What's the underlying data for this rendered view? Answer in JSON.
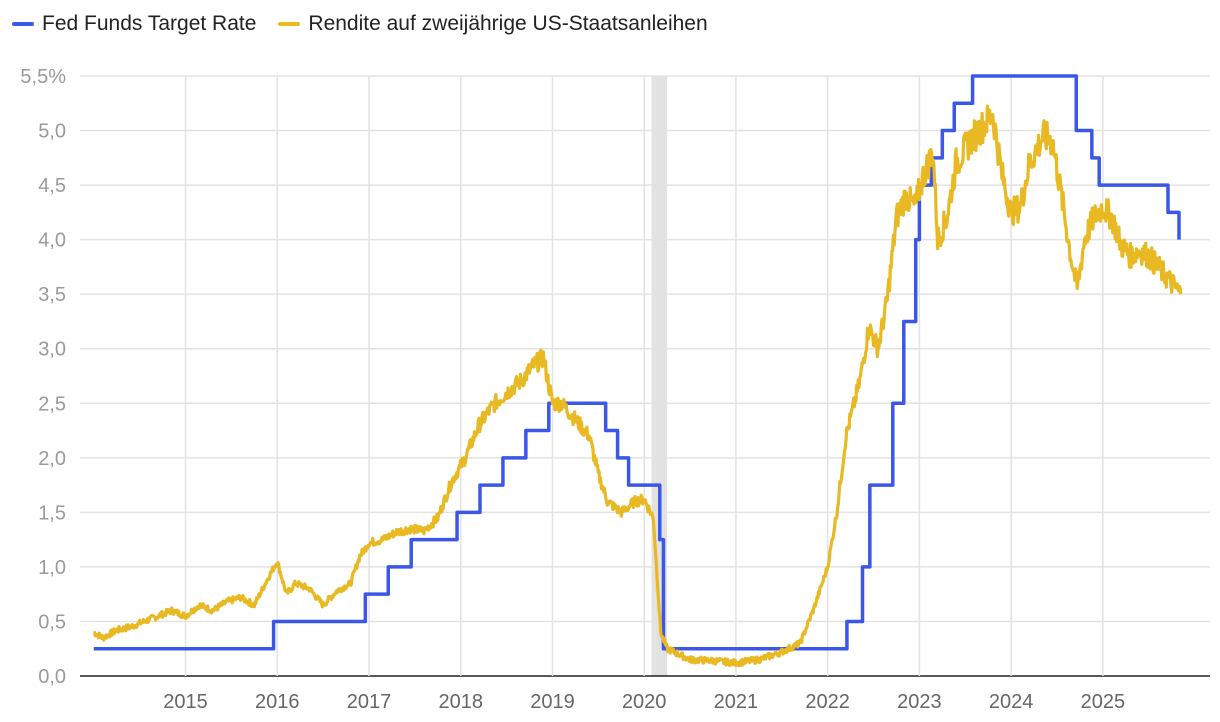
{
  "chart_data": {
    "type": "line",
    "title": "",
    "xlabel": "",
    "ylabel": "",
    "x_ticks": [
      "2015",
      "2016",
      "2017",
      "2018",
      "2019",
      "2020",
      "2021",
      "2022",
      "2023",
      "2024",
      "2025"
    ],
    "y_ticks": [
      "0,0",
      "0,5",
      "1,0",
      "1,5",
      "2,0",
      "2,5",
      "3,0",
      "3,5",
      "4,0",
      "4,5",
      "5,0",
      "5,5%"
    ],
    "ylim": [
      0,
      5.5
    ],
    "xlim": [
      2014.0,
      2025.95
    ],
    "legend_position": "top-left",
    "shaded_period": {
      "start": 2020.08,
      "end": 2020.25,
      "color": "#e2e2e2"
    },
    "series": [
      {
        "name": "Fed Funds Target Rate",
        "color": "#3a57e8",
        "step": true,
        "points": [
          [
            2014.0,
            0.25
          ],
          [
            2015.96,
            0.5
          ],
          [
            2016.96,
            0.75
          ],
          [
            2017.21,
            1.0
          ],
          [
            2017.46,
            1.25
          ],
          [
            2017.96,
            1.5
          ],
          [
            2018.21,
            1.75
          ],
          [
            2018.46,
            2.0
          ],
          [
            2018.71,
            2.25
          ],
          [
            2018.96,
            2.5
          ],
          [
            2019.58,
            2.25
          ],
          [
            2019.71,
            2.0
          ],
          [
            2019.83,
            1.75
          ],
          [
            2020.17,
            1.25
          ],
          [
            2020.21,
            0.25
          ],
          [
            2022.21,
            0.5
          ],
          [
            2022.38,
            1.0
          ],
          [
            2022.46,
            1.75
          ],
          [
            2022.71,
            2.5
          ],
          [
            2022.83,
            3.25
          ],
          [
            2022.96,
            4.0
          ],
          [
            2023.0,
            4.5
          ],
          [
            2023.13,
            4.75
          ],
          [
            2023.25,
            5.0
          ],
          [
            2023.38,
            5.25
          ],
          [
            2023.58,
            5.5
          ],
          [
            2024.71,
            5.0
          ],
          [
            2024.88,
            4.75
          ],
          [
            2024.96,
            4.5
          ],
          [
            2025.71,
            4.25
          ],
          [
            2025.83,
            4.0
          ]
        ]
      },
      {
        "name": "Rendite auf zweijährige US-Staatsanleihen",
        "color": "#e8b923",
        "step": false,
        "points": [
          [
            2014.0,
            0.4
          ],
          [
            2014.1,
            0.35
          ],
          [
            2014.25,
            0.42
          ],
          [
            2014.4,
            0.45
          ],
          [
            2014.55,
            0.5
          ],
          [
            2014.7,
            0.55
          ],
          [
            2014.85,
            0.6
          ],
          [
            2015.0,
            0.55
          ],
          [
            2015.15,
            0.65
          ],
          [
            2015.3,
            0.6
          ],
          [
            2015.45,
            0.68
          ],
          [
            2015.6,
            0.72
          ],
          [
            2015.75,
            0.65
          ],
          [
            2015.9,
            0.9
          ],
          [
            2016.0,
            1.05
          ],
          [
            2016.1,
            0.75
          ],
          [
            2016.2,
            0.85
          ],
          [
            2016.35,
            0.8
          ],
          [
            2016.5,
            0.65
          ],
          [
            2016.65,
            0.78
          ],
          [
            2016.8,
            0.85
          ],
          [
            2016.9,
            1.1
          ],
          [
            2017.0,
            1.22
          ],
          [
            2017.15,
            1.25
          ],
          [
            2017.3,
            1.32
          ],
          [
            2017.45,
            1.35
          ],
          [
            2017.6,
            1.33
          ],
          [
            2017.75,
            1.45
          ],
          [
            2017.9,
            1.78
          ],
          [
            2018.05,
            2.0
          ],
          [
            2018.2,
            2.3
          ],
          [
            2018.35,
            2.48
          ],
          [
            2018.5,
            2.6
          ],
          [
            2018.65,
            2.7
          ],
          [
            2018.8,
            2.85
          ],
          [
            2018.9,
            2.92
          ],
          [
            2019.0,
            2.5
          ],
          [
            2019.1,
            2.5
          ],
          [
            2019.25,
            2.35
          ],
          [
            2019.4,
            2.2
          ],
          [
            2019.5,
            1.85
          ],
          [
            2019.6,
            1.6
          ],
          [
            2019.75,
            1.5
          ],
          [
            2019.9,
            1.6
          ],
          [
            2020.0,
            1.62
          ],
          [
            2020.1,
            1.45
          ],
          [
            2020.18,
            0.4
          ],
          [
            2020.25,
            0.25
          ],
          [
            2020.5,
            0.15
          ],
          [
            2020.75,
            0.14
          ],
          [
            2021.0,
            0.12
          ],
          [
            2021.25,
            0.15
          ],
          [
            2021.5,
            0.22
          ],
          [
            2021.7,
            0.3
          ],
          [
            2021.85,
            0.62
          ],
          [
            2022.0,
            1.0
          ],
          [
            2022.1,
            1.5
          ],
          [
            2022.2,
            2.2
          ],
          [
            2022.35,
            2.7
          ],
          [
            2022.45,
            3.2
          ],
          [
            2022.55,
            3.0
          ],
          [
            2022.65,
            3.45
          ],
          [
            2022.75,
            4.2
          ],
          [
            2022.85,
            4.4
          ],
          [
            2022.95,
            4.3
          ],
          [
            2023.05,
            4.6
          ],
          [
            2023.15,
            4.8
          ],
          [
            2023.2,
            4.0
          ],
          [
            2023.3,
            4.2
          ],
          [
            2023.4,
            4.7
          ],
          [
            2023.55,
            4.9
          ],
          [
            2023.7,
            5.05
          ],
          [
            2023.8,
            5.15
          ],
          [
            2023.9,
            4.6
          ],
          [
            2024.0,
            4.25
          ],
          [
            2024.1,
            4.3
          ],
          [
            2024.2,
            4.7
          ],
          [
            2024.35,
            4.95
          ],
          [
            2024.45,
            4.9
          ],
          [
            2024.55,
            4.4
          ],
          [
            2024.65,
            3.85
          ],
          [
            2024.72,
            3.55
          ],
          [
            2024.8,
            4.0
          ],
          [
            2024.9,
            4.2
          ],
          [
            2025.0,
            4.3
          ],
          [
            2025.1,
            4.2
          ],
          [
            2025.2,
            3.95
          ],
          [
            2025.3,
            3.85
          ],
          [
            2025.4,
            3.9
          ],
          [
            2025.5,
            3.85
          ],
          [
            2025.6,
            3.75
          ],
          [
            2025.7,
            3.65
          ],
          [
            2025.8,
            3.55
          ],
          [
            2025.85,
            3.5
          ]
        ]
      }
    ]
  }
}
